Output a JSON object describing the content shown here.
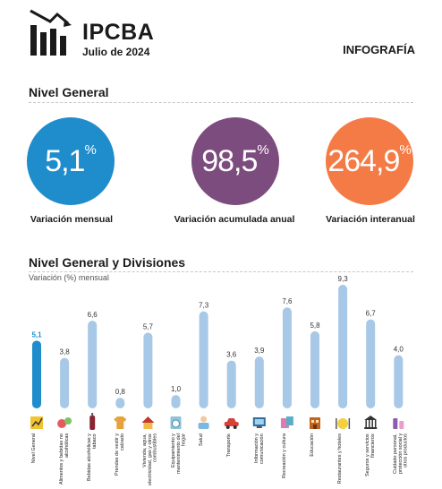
{
  "header": {
    "brand": "IPCBA",
    "period": "Julio de 2024",
    "kind": "INFOGRAFÍA"
  },
  "general": {
    "title": "Nivel General",
    "kpis": [
      {
        "value": "5,1",
        "unit": "%",
        "label": "Variación mensual",
        "color": "#1f8ccc"
      },
      {
        "value": "98,5",
        "unit": "%",
        "label": "Variación acumulada anual",
        "color": "#7d4c7e"
      },
      {
        "value": "264,9",
        "unit": "%",
        "label": "Variación interanual",
        "color": "#f57b46"
      }
    ]
  },
  "divisions": {
    "title": "Nivel General y Divisiones",
    "subtitle": "Variación (%) mensual"
  },
  "chart_data": {
    "type": "bar",
    "title": "Nivel General y Divisiones",
    "ylabel": "Variación (%) mensual",
    "ylim": [
      0,
      9.3
    ],
    "categories": [
      "Nivel General",
      "Alimentos y bebidas no alcohólicas",
      "Bebidas alcohólicas y tabaco",
      "Prendas de vestir y calzado",
      "Vivienda, agua, electricidad, gas y otros combustibles",
      "Equipamiento y mantenimiento del hogar",
      "Salud",
      "Transporte",
      "Información y comunicación",
      "Recreación y cultura",
      "Educación",
      "Restaurantes y hoteles",
      "Seguros y servicios financieros",
      "Cuidado personal, protección social y otros productos"
    ],
    "values": [
      5.1,
      3.8,
      6.6,
      0.8,
      5.7,
      1.0,
      7.3,
      3.6,
      3.9,
      7.6,
      5.8,
      9.3,
      6.7,
      4.0
    ],
    "value_labels": [
      "5,1",
      "3,8",
      "6,6",
      "0,8",
      "5,7",
      "1,0",
      "7,3",
      "3,6",
      "3,9",
      "7,6",
      "5,8",
      "9,3",
      "6,7",
      "4,0"
    ],
    "highlight_index": 0,
    "colors": {
      "highlight": "#1f8ccc",
      "bar": "#a7c8e6"
    },
    "icons": [
      "ipc-icon",
      "fruit-icon",
      "bottle-icon",
      "shirt-icon",
      "house-icon",
      "appliance-icon",
      "doctor-icon",
      "car-icon",
      "computer-icon",
      "leisure-icon",
      "school-icon",
      "restaurant-icon",
      "bank-icon",
      "toiletries-icon"
    ]
  }
}
